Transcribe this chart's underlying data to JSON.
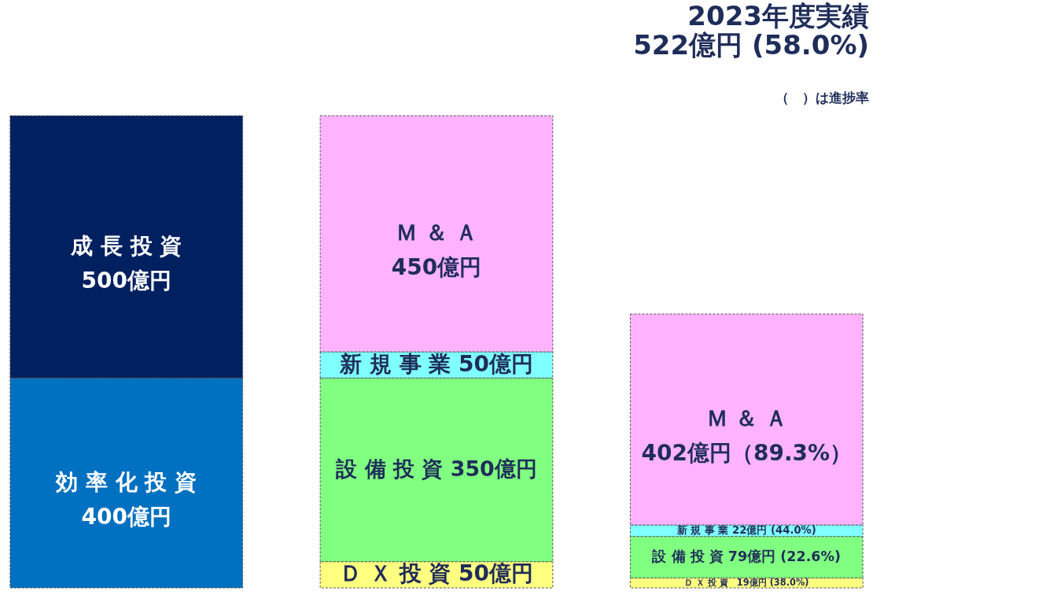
{
  "chart_data": {
    "type": "bar",
    "stacked": true,
    "title": "2023年度実績",
    "subtitle": "522億円 (58.0%)",
    "annotations": [
      "（　）は進捗率"
    ],
    "categories": [
      null,
      null,
      null
    ],
    "series": [
      {
        "color": "#ffff80",
        "values": [
          null,
          50,
          19
        ],
        "value_labels": [
          null,
          "Ｄ Ｘ 投 資 50億円",
          "Ｄ Ｘ 投 資　19億円 (38.0%)"
        ]
      },
      {
        "color": "#80ff80",
        "values": [
          null,
          350,
          79
        ],
        "value_labels": [
          null,
          "設 備 投 資 350億円",
          "設 備 投 資 79億円 (22.6%)"
        ]
      },
      {
        "color": "#80ffff",
        "values": [
          null,
          50,
          22
        ],
        "value_labels": [
          null,
          "新 規 事 業 50億円",
          "新 規 事 業 22億円 (44.0%)"
        ]
      },
      {
        "color": "#ffb3ff",
        "values": [
          null,
          450,
          402
        ],
        "value_labels": [
          null,
          "Ｍ ＆ Ａ\n450億円",
          "Ｍ ＆ Ａ\n402億円（89.3%）"
        ]
      },
      {
        "color": "#0070c0",
        "values": [
          400,
          null,
          null
        ],
        "value_labels": [
          "効 率 化 投 資\n400億円",
          null,
          null
        ]
      },
      {
        "color": "#002060",
        "values": [
          500,
          null,
          null
        ],
        "value_labels": [
          "成 長 投 資\n500億円",
          null,
          null
        ]
      }
    ]
  }
}
